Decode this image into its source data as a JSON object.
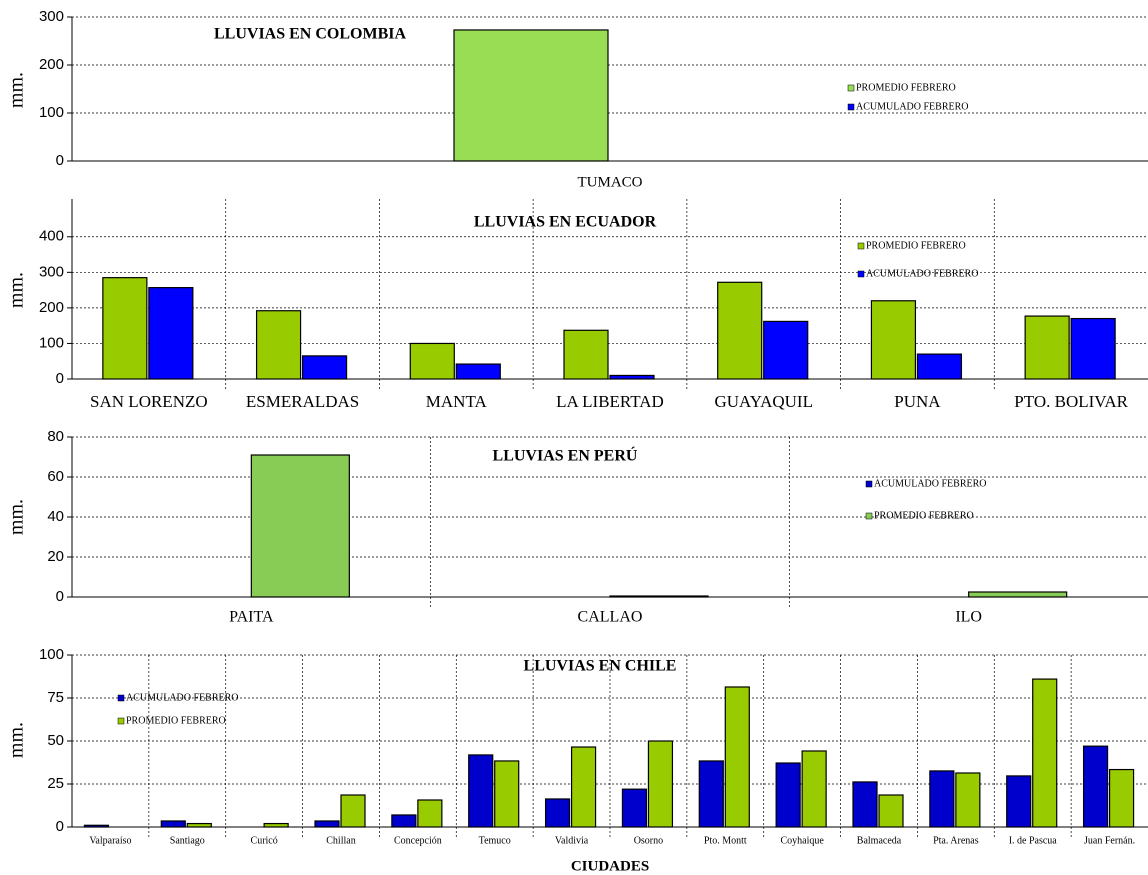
{
  "chart_data": [
    {
      "type": "bar",
      "title": "LLUVIAS EN COLOMBIA",
      "ylabel": "mm.",
      "categories": [
        "TUMACO"
      ],
      "series": [
        {
          "name": "PROMEDIO FEBRERO",
          "color": "#99dd55",
          "values": [
            273
          ]
        },
        {
          "name": "ACUMULADO FEBRERO",
          "color": "#0000ee",
          "values": [
            null
          ]
        }
      ],
      "ylim": [
        0,
        300
      ],
      "yticks": [
        0,
        100,
        200,
        300
      ],
      "grid": true,
      "xgrid": false
    },
    {
      "type": "bar",
      "title": "LLUVIAS EN ECUADOR",
      "ylabel": "mm.",
      "categories": [
        "SAN LORENZO",
        "ESMERALDAS",
        "MANTA",
        "LA LIBERTAD",
        "GUAYAQUIL",
        "PUNA",
        "PTO. BOLIVAR"
      ],
      "series": [
        {
          "name": "PROMEDIO FEBRERO",
          "color": "#99cc00",
          "values": [
            285,
            192,
            100,
            137,
            272,
            220,
            177
          ]
        },
        {
          "name": "ACUMULADO FEBRERO",
          "color": "#0000ff",
          "values": [
            257,
            65,
            42,
            10,
            162,
            70,
            170
          ]
        }
      ],
      "ylim": [
        0,
        450
      ],
      "yticks": [
        0,
        100,
        200,
        300,
        400
      ],
      "grid": true,
      "xgrid": true
    },
    {
      "type": "bar",
      "title": "LLUVIAS EN PERÚ",
      "ylabel": "mm.",
      "categories": [
        "PAITA",
        "CALLAO",
        "ILO"
      ],
      "series": [
        {
          "name": "ACUMULADO FEBRERO",
          "color": "#0000cc",
          "values": [
            null,
            null,
            null
          ]
        },
        {
          "name": "PROMEDIO FEBRERO",
          "color": "#88cc55",
          "values": [
            71,
            0.5,
            2.5
          ]
        }
      ],
      "ylim": [
        0,
        80
      ],
      "yticks": [
        0,
        20,
        40,
        60,
        80
      ],
      "grid": true,
      "xgrid": true
    },
    {
      "type": "bar",
      "title": "LLUVIAS EN CHILE",
      "ylabel": "mm.",
      "xlabel": "CIUDADES",
      "categories": [
        "Valparaíso",
        "Santiago",
        "Curicó",
        "Chillan",
        "Concepción",
        "Temuco",
        "Valdivia",
        "Osorno",
        "Pto. Montt",
        "Coyhaique",
        "Balmaceda",
        "Pta. Arenas",
        "I. de Pascua",
        "Juan Fernán."
      ],
      "series": [
        {
          "name": "ACUMULADO FEBRERO",
          "color": "#0000cc",
          "values": [
            1,
            3.5,
            null,
            3.5,
            7,
            41.9,
            16.3,
            22,
            38.4,
            37.2,
            26.2,
            32.6,
            29.7,
            47
          ]
        },
        {
          "name": "PROMEDIO FEBRERO",
          "color": "#99cc00",
          "values": [
            null,
            2,
            2,
            18.6,
            15.7,
            38.4,
            46.5,
            50,
            81.4,
            44.2,
            18.6,
            31.4,
            86,
            33.4
          ]
        }
      ],
      "ylim": [
        0,
        100
      ],
      "yticks": [
        0,
        25,
        50,
        75,
        100
      ],
      "grid": true,
      "xgrid": true
    }
  ]
}
